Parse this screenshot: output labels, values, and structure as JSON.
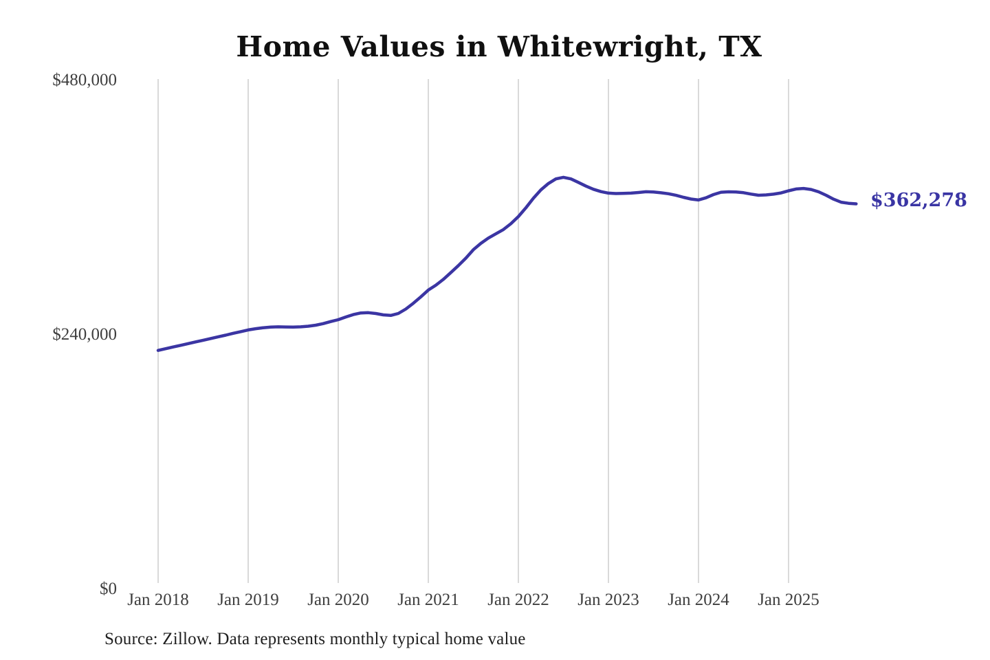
{
  "page": {
    "background": "#FFFFFF"
  },
  "chart_data": {
    "type": "line",
    "title": "Home Values in Whitewright, TX",
    "source_note": "Source: Zillow. Data represents monthly typical home value",
    "end_label": "$362,278",
    "end_value": 362278,
    "legend": "none",
    "grid": "vertical-only",
    "colors": {
      "line": "#3B35A3",
      "end_label": "#3A35A4",
      "grid": "#C9C9C9",
      "axis_text": "#3E3E3E",
      "title": "#101010",
      "source_text": "#1E1E1E"
    },
    "y_axis": {
      "min": 0,
      "max": 480000,
      "ticks": [
        {
          "label": "$0",
          "value": 0
        },
        {
          "label": "$240,000",
          "value": 240000
        },
        {
          "label": "$480,000",
          "value": 480000
        }
      ]
    },
    "x_axis": {
      "tick_labels": [
        "Jan 2018",
        "Jan 2019",
        "Jan 2020",
        "Jan 2021",
        "Jan 2022",
        "Jan 2023",
        "Jan 2024",
        "Jan 2025"
      ],
      "months_per_tick": 12
    },
    "series": [
      {
        "name": "Monthly typical home value",
        "start_month": "2018-01",
        "end_month": "2025-10",
        "months": [
          "2018-01",
          "2018-02",
          "2018-03",
          "2018-04",
          "2018-05",
          "2018-06",
          "2018-07",
          "2018-08",
          "2018-09",
          "2018-10",
          "2018-11",
          "2018-12",
          "2019-01",
          "2019-02",
          "2019-03",
          "2019-04",
          "2019-05",
          "2019-06",
          "2019-07",
          "2019-08",
          "2019-09",
          "2019-10",
          "2019-11",
          "2019-12",
          "2020-01",
          "2020-02",
          "2020-03",
          "2020-04",
          "2020-05",
          "2020-06",
          "2020-07",
          "2020-08",
          "2020-09",
          "2020-10",
          "2020-11",
          "2020-12",
          "2021-01",
          "2021-02",
          "2021-03",
          "2021-04",
          "2021-05",
          "2021-06",
          "2021-07",
          "2021-08",
          "2021-09",
          "2021-10",
          "2021-11",
          "2021-12",
          "2022-01",
          "2022-02",
          "2022-03",
          "2022-04",
          "2022-05",
          "2022-06",
          "2022-07",
          "2022-08",
          "2022-09",
          "2022-10",
          "2022-11",
          "2022-12",
          "2023-01",
          "2023-02",
          "2023-03",
          "2023-04",
          "2023-05",
          "2023-06",
          "2023-07",
          "2023-08",
          "2023-09",
          "2023-10",
          "2023-11",
          "2023-12",
          "2024-01",
          "2024-02",
          "2024-03",
          "2024-04",
          "2024-05",
          "2024-06",
          "2024-07",
          "2024-08",
          "2024-09",
          "2024-10",
          "2024-11",
          "2024-12",
          "2025-01",
          "2025-02",
          "2025-03",
          "2025-04",
          "2025-05",
          "2025-06",
          "2025-07",
          "2025-08",
          "2025-09",
          "2025-10"
        ],
        "values": [
          224000,
          225600,
          227200,
          228800,
          230400,
          232000,
          233600,
          235200,
          236800,
          238400,
          240100,
          241700,
          243300,
          244500,
          245400,
          246000,
          246200,
          246100,
          246000,
          246200,
          246800,
          247800,
          249300,
          251200,
          253000,
          255500,
          257800,
          259300,
          259600,
          258800,
          257500,
          257000,
          258800,
          263000,
          268500,
          274500,
          280900,
          285500,
          291000,
          297500,
          304000,
          311000,
          319000,
          325000,
          330000,
          334000,
          338000,
          343500,
          350300,
          358500,
          367500,
          375500,
          381500,
          385800,
          387300,
          385800,
          382500,
          379000,
          376000,
          373800,
          372400,
          372000,
          372100,
          372400,
          373000,
          373700,
          373400,
          372700,
          371800,
          370300,
          368400,
          366800,
          365900,
          368000,
          371000,
          373200,
          373600,
          373500,
          372800,
          371500,
          370400,
          370700,
          371400,
          372600,
          374600,
          376300,
          376800,
          375800,
          373600,
          370400,
          366700,
          363800,
          362800,
          362278
        ]
      }
    ]
  }
}
